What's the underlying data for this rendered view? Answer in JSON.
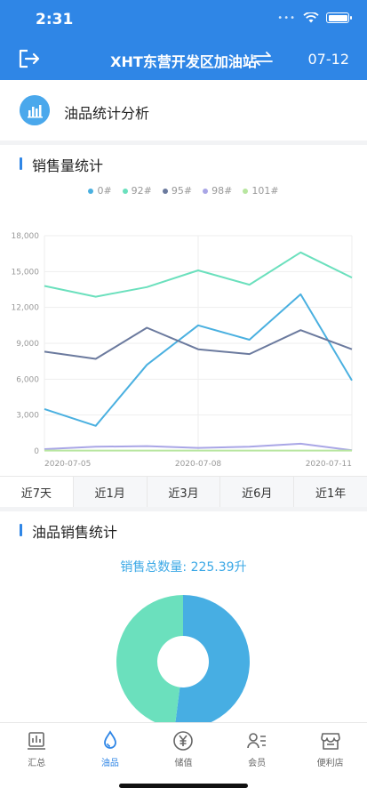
{
  "status": {
    "time": "2:31"
  },
  "header": {
    "title": "XHT东营开发区加油站",
    "date": "07-12",
    "icons": [
      "logout-icon",
      "swap-icon"
    ]
  },
  "section": {
    "title": "油品统计分析",
    "icon": "bar-chart-icon"
  },
  "sales_card": {
    "title": "销售量统计",
    "tabs": [
      "近7天",
      "近1月",
      "近3月",
      "近6月",
      "近1年"
    ]
  },
  "chart_data": {
    "type": "line",
    "legend": [
      "0#",
      "92#",
      "95#",
      "98#",
      "101#"
    ],
    "x": [
      "2020-07-05",
      "2020-07-06",
      "2020-07-07",
      "2020-07-08",
      "2020-07-09",
      "2020-07-10",
      "2020-07-11"
    ],
    "x_tick_labels": [
      "2020-07-05",
      "2020-07-08",
      "2020-07-11"
    ],
    "y_tick_labels": [
      "0",
      "3,000",
      "6,000",
      "9,000",
      "12,000",
      "15,000",
      "18,000"
    ],
    "ylim": [
      0,
      18000
    ],
    "grid": true,
    "legend_position": "top-center",
    "series": [
      {
        "name": "0#",
        "color": "#4ab0e0",
        "values": [
          3500,
          2100,
          7200,
          10500,
          9300,
          13100,
          5900
        ]
      },
      {
        "name": "92#",
        "color": "#6be0bd",
        "values": [
          13800,
          12900,
          13700,
          15100,
          13900,
          16600,
          14500
        ]
      },
      {
        "name": "95#",
        "color": "#6b7a9e",
        "values": [
          8300,
          7700,
          10300,
          8500,
          8100,
          10100,
          8500
        ]
      },
      {
        "name": "98#",
        "color": "#a9a6e6",
        "values": [
          150,
          350,
          400,
          250,
          350,
          600,
          50
        ]
      },
      {
        "name": "101#",
        "color": "#b8e6a0",
        "values": [
          30,
          30,
          30,
          30,
          30,
          30,
          30
        ]
      }
    ]
  },
  "oil_card": {
    "title": "油品销售统计",
    "total_label": "销售总数量: 225.39升",
    "donut": [
      {
        "color": "#47aee3",
        "fraction": 0.52
      },
      {
        "color": "#6be0bd",
        "fraction": 0.48
      }
    ]
  },
  "nav": [
    {
      "label": "汇总",
      "icon": "summary-icon",
      "active": false
    },
    {
      "label": "油品",
      "icon": "oil-drop-icon",
      "active": true
    },
    {
      "label": "储值",
      "icon": "yen-icon",
      "active": false
    },
    {
      "label": "会员",
      "icon": "member-icon",
      "active": false
    },
    {
      "label": "便利店",
      "icon": "store-icon",
      "active": false
    }
  ]
}
